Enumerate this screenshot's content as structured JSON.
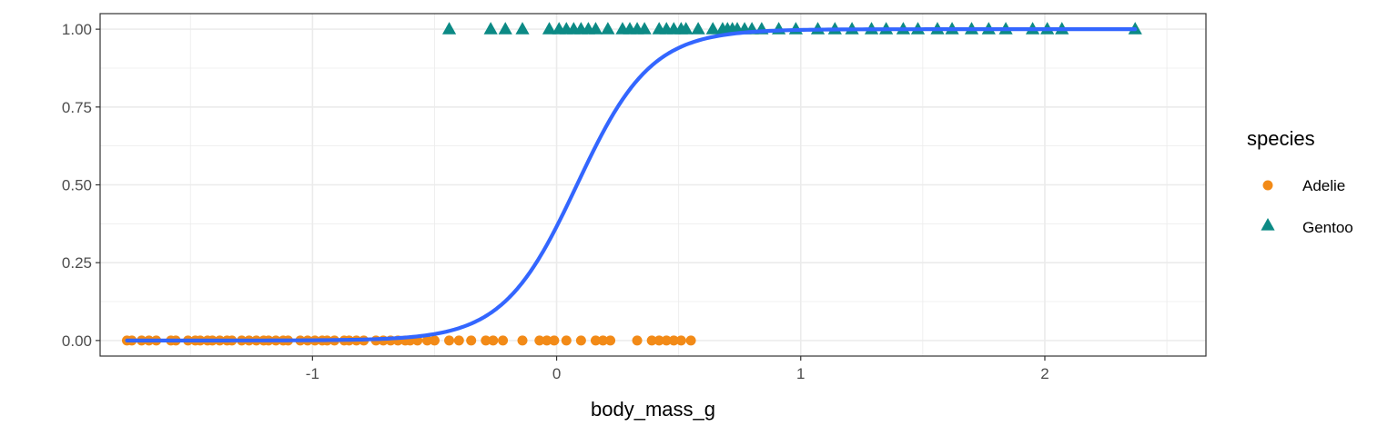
{
  "chart_data": {
    "type": "scatter",
    "title": "",
    "xlabel": "body_mass_g",
    "ylabel": "",
    "xlim": [
      -1.87,
      2.66
    ],
    "ylim": [
      -0.05,
      1.05
    ],
    "x_ticks": [
      -1,
      0,
      1,
      2
    ],
    "x_tick_labels": [
      "-1",
      "0",
      "1",
      "2"
    ],
    "y_ticks": [
      0,
      0.25,
      0.5,
      0.75,
      1
    ],
    "y_tick_labels": [
      "0.00",
      "0.25",
      "0.50",
      "0.75",
      "1.00"
    ],
    "grid": true,
    "legend": {
      "title": "species",
      "position": "right"
    },
    "series": [
      {
        "name": "Adelie",
        "color": "#F28A17",
        "marker": "circle",
        "y": 0,
        "x": [
          -1.76,
          -1.74,
          -1.7,
          -1.67,
          -1.64,
          -1.58,
          -1.56,
          -1.51,
          -1.48,
          -1.46,
          -1.43,
          -1.41,
          -1.38,
          -1.35,
          -1.33,
          -1.29,
          -1.26,
          -1.23,
          -1.2,
          -1.18,
          -1.15,
          -1.12,
          -1.1,
          -1.05,
          -1.02,
          -0.99,
          -0.96,
          -0.94,
          -0.91,
          -0.87,
          -0.85,
          -0.82,
          -0.79,
          -0.74,
          -0.71,
          -0.68,
          -0.65,
          -0.62,
          -0.6,
          -0.57,
          -0.53,
          -0.5,
          -0.44,
          -0.4,
          -0.35,
          -0.29,
          -0.26,
          -0.22,
          -0.14,
          -0.07,
          -0.04,
          -0.01,
          0.04,
          0.1,
          0.16,
          0.19,
          0.22,
          0.33,
          0.39,
          0.42,
          0.45,
          0.48,
          0.51,
          0.55
        ]
      },
      {
        "name": "Gentoo",
        "color": "#0C8A85",
        "marker": "triangle",
        "y": 1,
        "x": [
          -0.44,
          -0.27,
          -0.21,
          -0.14,
          -0.03,
          0.01,
          0.04,
          0.07,
          0.1,
          0.13,
          0.16,
          0.21,
          0.27,
          0.3,
          0.33,
          0.36,
          0.42,
          0.45,
          0.48,
          0.51,
          0.53,
          0.58,
          0.64,
          0.68,
          0.7,
          0.72,
          0.74,
          0.77,
          0.8,
          0.84,
          0.91,
          0.98,
          1.07,
          1.14,
          1.21,
          1.29,
          1.35,
          1.42,
          1.48,
          1.56,
          1.62,
          1.7,
          1.77,
          1.84,
          1.95,
          2.01,
          2.07,
          2.37
        ]
      }
    ],
    "fit": {
      "name": "logistic fit",
      "color": "#3366FF",
      "intercept": -0.55,
      "slope": 6.6
    }
  }
}
